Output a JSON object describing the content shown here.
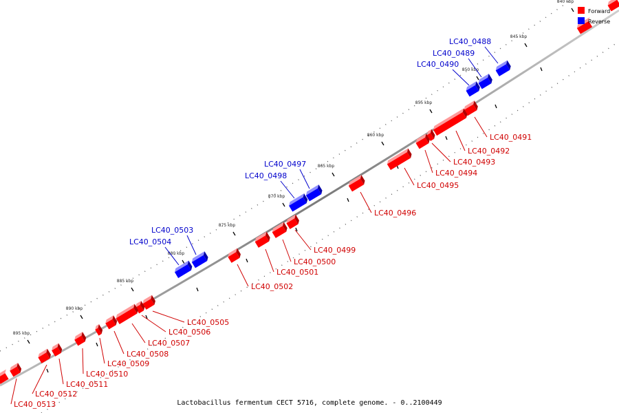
{
  "caption": "Lactobacillus fermentum CECT 5716, complete genome. - 0..2100449",
  "legend": {
    "forward_label": "Forward",
    "reverse_label": "Reverse",
    "forward_color": "#ff0000",
    "reverse_color": "#0000ff"
  },
  "scale": {
    "ticks": [
      "840 kbp",
      "845 kbp",
      "850 kbp",
      "855 kbp",
      "860 kbp",
      "865 kbp",
      "870 kbp",
      "875 kbp",
      "880 kbp",
      "885 kbp",
      "890 kbp",
      "895 kbp"
    ]
  },
  "genes": [
    {
      "id": "LC40_0488",
      "strand": "reverse"
    },
    {
      "id": "LC40_0489",
      "strand": "reverse"
    },
    {
      "id": "LC40_0490",
      "strand": "reverse"
    },
    {
      "id": "LC40_0491",
      "strand": "forward"
    },
    {
      "id": "LC40_0492",
      "strand": "forward"
    },
    {
      "id": "LC40_0493",
      "strand": "forward"
    },
    {
      "id": "LC40_0494",
      "strand": "forward"
    },
    {
      "id": "LC40_0495",
      "strand": "forward"
    },
    {
      "id": "LC40_0496",
      "strand": "forward"
    },
    {
      "id": "LC40_0497",
      "strand": "reverse"
    },
    {
      "id": "LC40_0498",
      "strand": "reverse"
    },
    {
      "id": "LC40_0499",
      "strand": "forward"
    },
    {
      "id": "LC40_0500",
      "strand": "forward"
    },
    {
      "id": "LC40_0501",
      "strand": "forward"
    },
    {
      "id": "LC40_0502",
      "strand": "forward"
    },
    {
      "id": "LC40_0503",
      "strand": "reverse"
    },
    {
      "id": "LC40_0504",
      "strand": "reverse"
    },
    {
      "id": "LC40_0505",
      "strand": "forward"
    },
    {
      "id": "LC40_0506",
      "strand": "forward"
    },
    {
      "id": "LC40_0507",
      "strand": "forward"
    },
    {
      "id": "LC40_0508",
      "strand": "forward"
    },
    {
      "id": "LC40_0509",
      "strand": "forward"
    },
    {
      "id": "LC40_0510",
      "strand": "forward"
    },
    {
      "id": "LC40_0511",
      "strand": "forward"
    },
    {
      "id": "LC40_0512",
      "strand": "forward"
    },
    {
      "id": "LC40_0513",
      "strand": "forward"
    }
  ]
}
